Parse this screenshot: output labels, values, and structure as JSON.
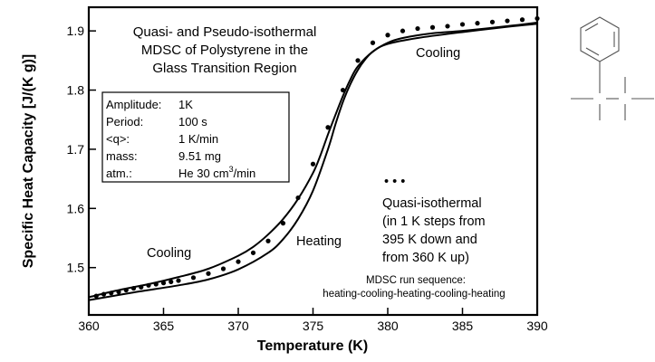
{
  "chart_data": {
    "type": "line",
    "title_lines": [
      "Quasi- and Pseudo-isothermal",
      "MDSC of Polystyrene in the",
      "Glass Transition Region"
    ],
    "xlabel": "Temperature  (K)",
    "ylabel": "Specific Heat Capacity  [J/(K g)]",
    "xlim": [
      360,
      390
    ],
    "ylim": [
      1.42,
      1.94
    ],
    "x_ticks": [
      360,
      365,
      370,
      375,
      380,
      385,
      390
    ],
    "x_tick_labels": [
      "360",
      "365",
      "370",
      "375",
      "380",
      "385",
      "390"
    ],
    "y_ticks": [
      1.5,
      1.6,
      1.7,
      1.8,
      1.9
    ],
    "y_tick_labels": [
      "1.5",
      "1.6",
      "1.7",
      "1.8",
      "1.9"
    ],
    "grid": false,
    "parameters": {
      "labels": [
        "Amplitude:",
        "Period:",
        "<q>:",
        "mass:",
        "atm.:"
      ],
      "values": [
        "1K",
        "100 s",
        "1 K/min",
        "9.51 mg",
        "He 30 cm"
      ],
      "atm_superscript": "3",
      "atm_suffix": "/min"
    },
    "annotations": {
      "cooling_top": "Cooling",
      "cooling_bottom": "Cooling",
      "heating": "Heating",
      "dots_marker": "• • •",
      "quasi_lines": [
        "Quasi-isothermal",
        "(in 1 K steps from",
        "395 K down and",
        "from 360 K up)"
      ],
      "run_lines": [
        "MDSC run sequence:",
        "heating-cooling-heating-cooling-heating"
      ]
    },
    "series": [
      {
        "style": "solid",
        "x": [
          360,
          362,
          364,
          366,
          368,
          370,
          371,
          372,
          373,
          374,
          375,
          375.5,
          376,
          376.5,
          377,
          377.5,
          378,
          379,
          380,
          382,
          385,
          388,
          390
        ],
        "y": [
          1.45,
          1.462,
          1.472,
          1.484,
          1.498,
          1.52,
          1.535,
          1.556,
          1.582,
          1.616,
          1.66,
          1.69,
          1.725,
          1.758,
          1.79,
          1.818,
          1.84,
          1.865,
          1.878,
          1.888,
          1.898,
          1.907,
          1.912
        ]
      },
      {
        "style": "solid",
        "x": [
          360,
          363,
          366,
          368,
          370,
          372,
          373,
          374,
          375,
          376,
          376.5,
          377,
          377.5,
          378,
          378.5,
          379,
          380,
          381,
          383,
          385,
          388,
          390
        ],
        "y": [
          1.445,
          1.458,
          1.47,
          1.48,
          1.497,
          1.525,
          1.548,
          1.582,
          1.63,
          1.7,
          1.742,
          1.78,
          1.81,
          1.834,
          1.852,
          1.865,
          1.88,
          1.888,
          1.896,
          1.9,
          1.908,
          1.914
        ]
      },
      {
        "style": "dots",
        "x": [
          360.5,
          361,
          361.5,
          362,
          362.5,
          363,
          363.5,
          364,
          364.5,
          365,
          365.5,
          366,
          367,
          368,
          369,
          370,
          371,
          372,
          373,
          374,
          375,
          376,
          377,
          378,
          379,
          380,
          381,
          382,
          383,
          384,
          385,
          386,
          387,
          388,
          389,
          390
        ],
        "y": [
          1.452,
          1.455,
          1.457,
          1.459,
          1.462,
          1.465,
          1.467,
          1.47,
          1.472,
          1.474,
          1.476,
          1.478,
          1.483,
          1.49,
          1.498,
          1.51,
          1.525,
          1.545,
          1.575,
          1.618,
          1.675,
          1.737,
          1.8,
          1.85,
          1.88,
          1.893,
          1.9,
          1.904,
          1.906,
          1.908,
          1.911,
          1.913,
          1.915,
          1.917,
          1.919,
          1.921
        ]
      }
    ]
  }
}
